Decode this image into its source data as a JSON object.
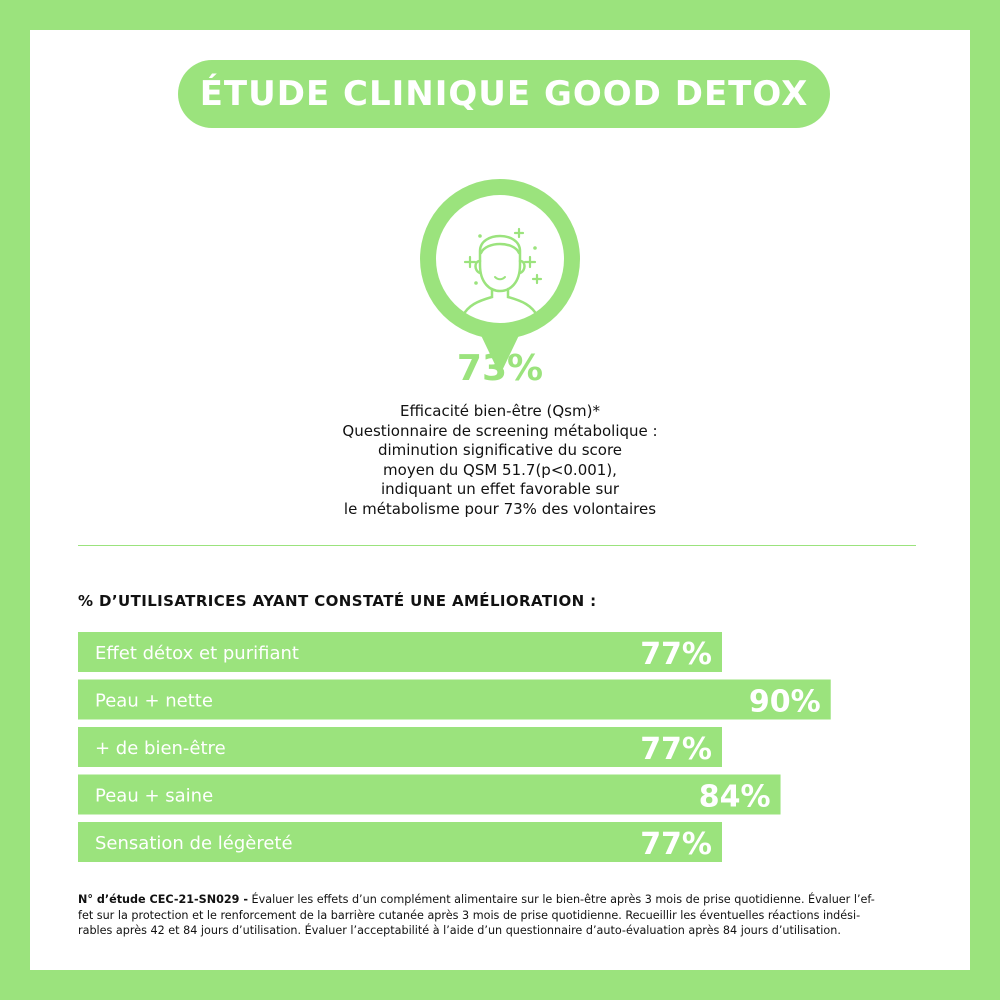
{
  "header": {
    "title": "ÉTUDE CLINIQUE GOOD DETOX"
  },
  "badge": {
    "icon": "person-wellbeing-icon",
    "color": "#9be37d"
  },
  "highlight": {
    "value": "73%",
    "lines": [
      "Efficacité bien-être (Qsm)*",
      "Questionnaire de screening métabolique :",
      "diminution significative du score",
      "moyen du QSM 51.7(p<0.001),",
      "indiquant un effet favorable sur",
      "le métabolisme pour 73% des volontaires"
    ]
  },
  "section": {
    "title": "% D’UTILISATRICES AYANT CONSTATÉ UNE AMÉLIORATION :"
  },
  "chart_data": {
    "type": "bar",
    "orientation": "horizontal",
    "categories": [
      "Effet détox et purifiant",
      "Peau + nette",
      "+ de bien-être",
      "Peau + saine",
      "Sensation de légèreté"
    ],
    "values": [
      77,
      90,
      77,
      84,
      77
    ],
    "labels": [
      "77%",
      "90%",
      "77%",
      "84%",
      "77%"
    ],
    "xlim": [
      0,
      100
    ],
    "grid": false,
    "title": "% D’UTILISATRICES AYANT CONSTATÉ UNE AMÉLIORATION :",
    "bar_color": "#9be37d",
    "text_color": "#ffffff"
  },
  "footnote": {
    "study_label": "N° d’étude CEC-21-SN029 -",
    "lines": [
      " Évaluer les effets d’un complément alimentaire sur le bien-être après 3 mois de prise quotidienne. Évaluer l’ef-",
      "fet sur la protection et le renforcement de la barrière cutanée après 3 mois de prise quotidienne. Recueillir les éventuelles réactions indési-",
      "rables après 42 et 84 jours d’utilisation. Évaluer l’acceptabilité à l’aide d’un questionnaire d’auto-évaluation après 84 jours d’utilisation."
    ]
  },
  "colors": {
    "accent": "#9be37d",
    "background": "#ffffff",
    "text": "#111111"
  }
}
